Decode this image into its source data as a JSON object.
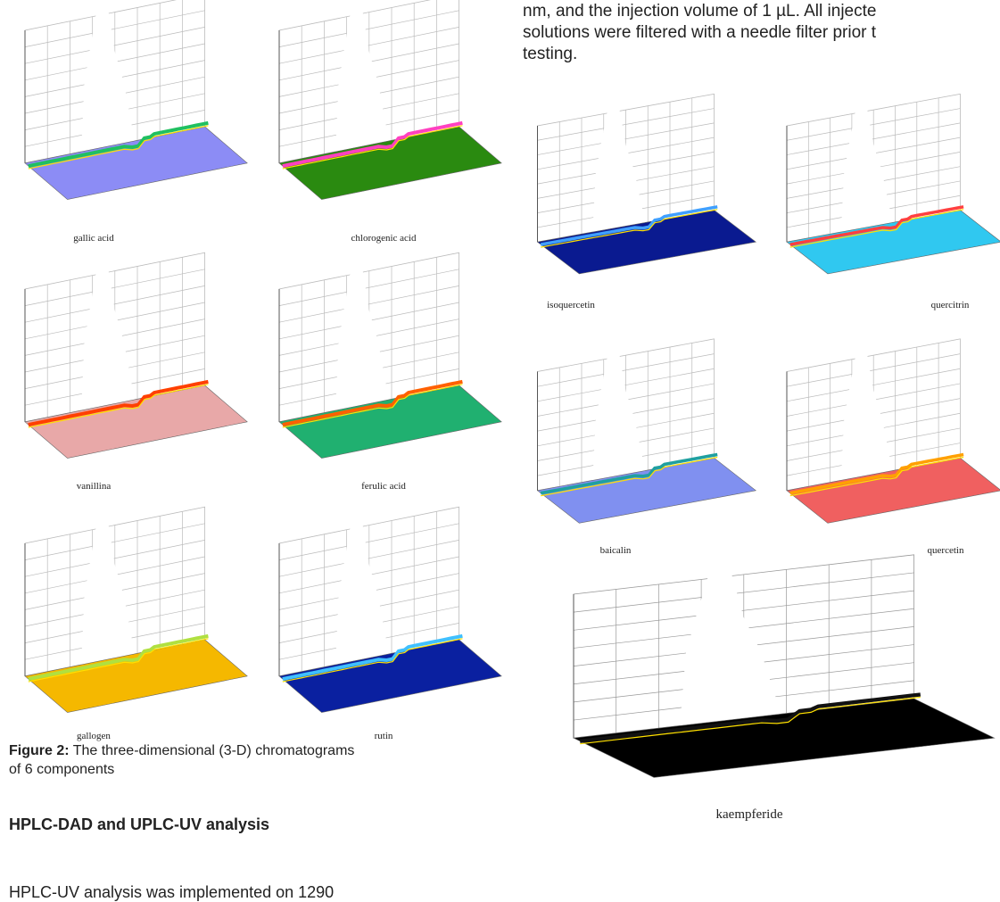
{
  "top_paragraph": {
    "lines": [
      "nm, and the injection volume of 1 µL. All injecte",
      "solutions were filtered with a needle filter prior t",
      "testing."
    ]
  },
  "left_figure": {
    "panels": [
      {
        "label": "gallic acid"
      },
      {
        "label": "chlorogenic acid"
      },
      {
        "label": "vanillina"
      },
      {
        "label": "ferulic acid"
      },
      {
        "label": "gallogen"
      },
      {
        "label": "rutin"
      }
    ],
    "caption": {
      "label": "Figure 2:",
      "text": "The three-dimensional (3-D) chromatograms of 6 components"
    }
  },
  "section_heading": "HPLC-DAD and UPLC-UV analysis",
  "body_text": "HPLC-UV analysis was implemented on 1290",
  "right_figure": {
    "panels": [
      {
        "label": "isoquercetin"
      },
      {
        "label": "quercitrin"
      },
      {
        "label": "baicalin"
      },
      {
        "label": "quercetin"
      },
      {
        "label": "kaempferide"
      }
    ]
  }
}
